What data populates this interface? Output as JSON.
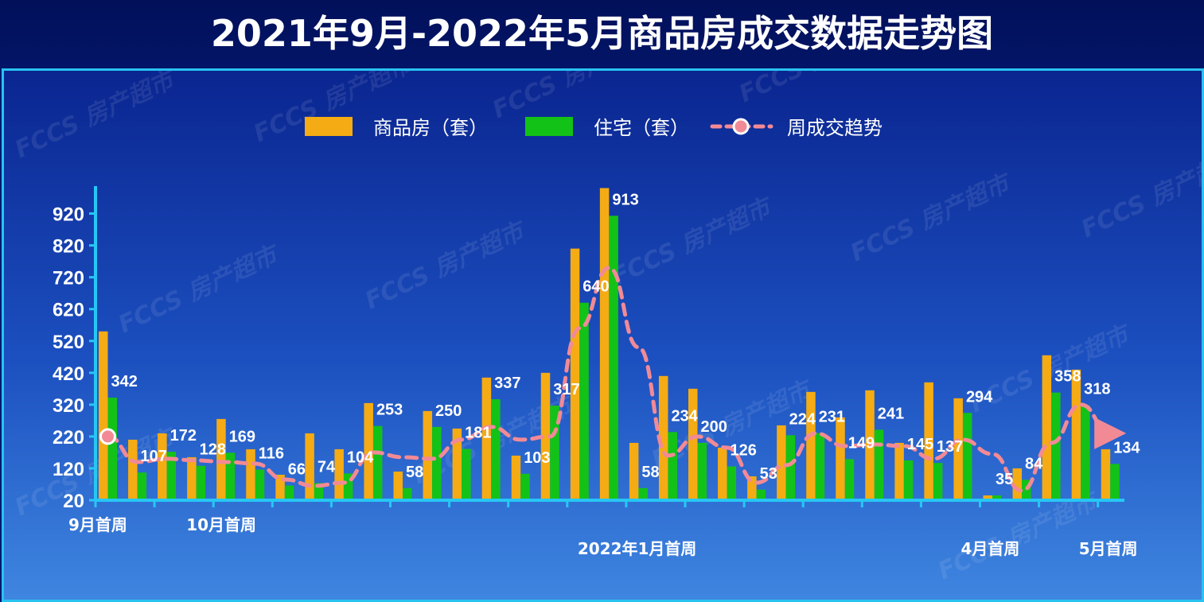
{
  "chart_data": {
    "type": "bar",
    "title": "2021年9月-2022年5月商品房成交数据走势图",
    "xlabel": "",
    "ylabel": "",
    "y_ticks": [
      20,
      120,
      220,
      320,
      420,
      520,
      620,
      720,
      820,
      920
    ],
    "ylim": [
      20,
      1010
    ],
    "legend_position": "top",
    "grid": false,
    "x_group_labels": [
      {
        "label": "9月首周",
        "index": 0
      },
      {
        "label": "10月首周",
        "index": 4
      },
      {
        "label": "2022年1月首周",
        "index": 17
      },
      {
        "label": "4月首周",
        "index": 30
      },
      {
        "label": "5月首周",
        "index": 34
      }
    ],
    "series": [
      {
        "name": "商品房（套）",
        "type": "bar",
        "color": "#f5ab14",
        "values": [
          550,
          210,
          230,
          155,
          275,
          180,
          100,
          230,
          180,
          325,
          110,
          300,
          245,
          405,
          160,
          420,
          810,
          1000,
          200,
          410,
          370,
          185,
          95,
          255,
          360,
          280,
          365,
          200,
          390,
          340,
          35,
          120,
          475,
          430,
          180
        ]
      },
      {
        "name": "住宅（套）",
        "type": "bar",
        "color": "#13c217",
        "values": [
          342,
          107,
          172,
          128,
          169,
          116,
          66,
          74,
          104,
          253,
          58,
          250,
          181,
          337,
          103,
          317,
          640,
          913,
          58,
          234,
          200,
          126,
          53,
          224,
          231,
          149,
          241,
          145,
          137,
          294,
          35,
          84,
          358,
          318,
          134
        ]
      },
      {
        "name": "周成交趋势",
        "type": "line",
        "color": "#f28a96",
        "values": [
          220,
          140,
          150,
          145,
          140,
          135,
          85,
          65,
          75,
          170,
          155,
          150,
          210,
          250,
          210,
          220,
          560,
          750,
          500,
          160,
          220,
          185,
          75,
          130,
          230,
          190,
          195,
          190,
          150,
          210,
          165,
          50,
          200,
          320,
          230
        ]
      }
    ]
  }
}
